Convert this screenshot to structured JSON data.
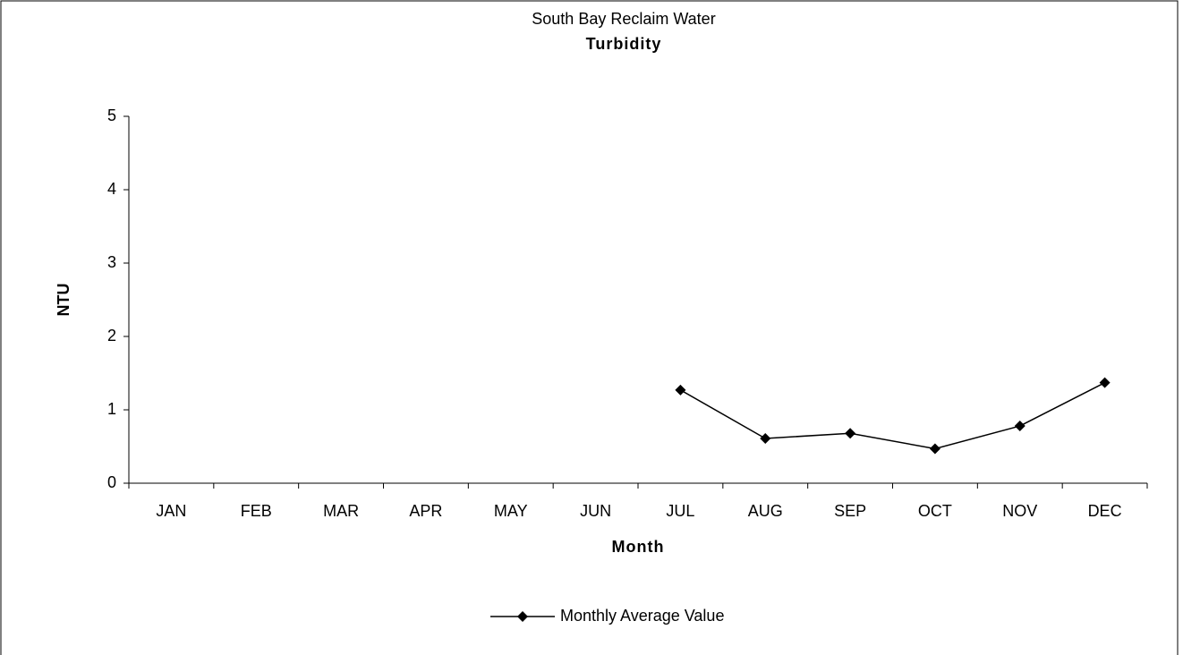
{
  "chart_data": {
    "type": "line",
    "title": "South Bay Reclaim Water",
    "subtitle": "Turbidity",
    "x_label": "Month",
    "y_label": "NTU",
    "categories": [
      "JAN",
      "FEB",
      "MAR",
      "APR",
      "MAY",
      "JUN",
      "JUL",
      "AUG",
      "SEP",
      "OCT",
      "NOV",
      "DEC"
    ],
    "series": [
      {
        "name": "Monthly Average Value",
        "color": "#000000",
        "values": [
          null,
          null,
          null,
          null,
          null,
          null,
          1.27,
          0.61,
          0.68,
          0.47,
          0.78,
          1.37
        ]
      }
    ],
    "ylim": [
      0,
      5
    ],
    "yticks": [
      0,
      1,
      2,
      3,
      4,
      5
    ],
    "grid": false,
    "legend": "bottom"
  }
}
